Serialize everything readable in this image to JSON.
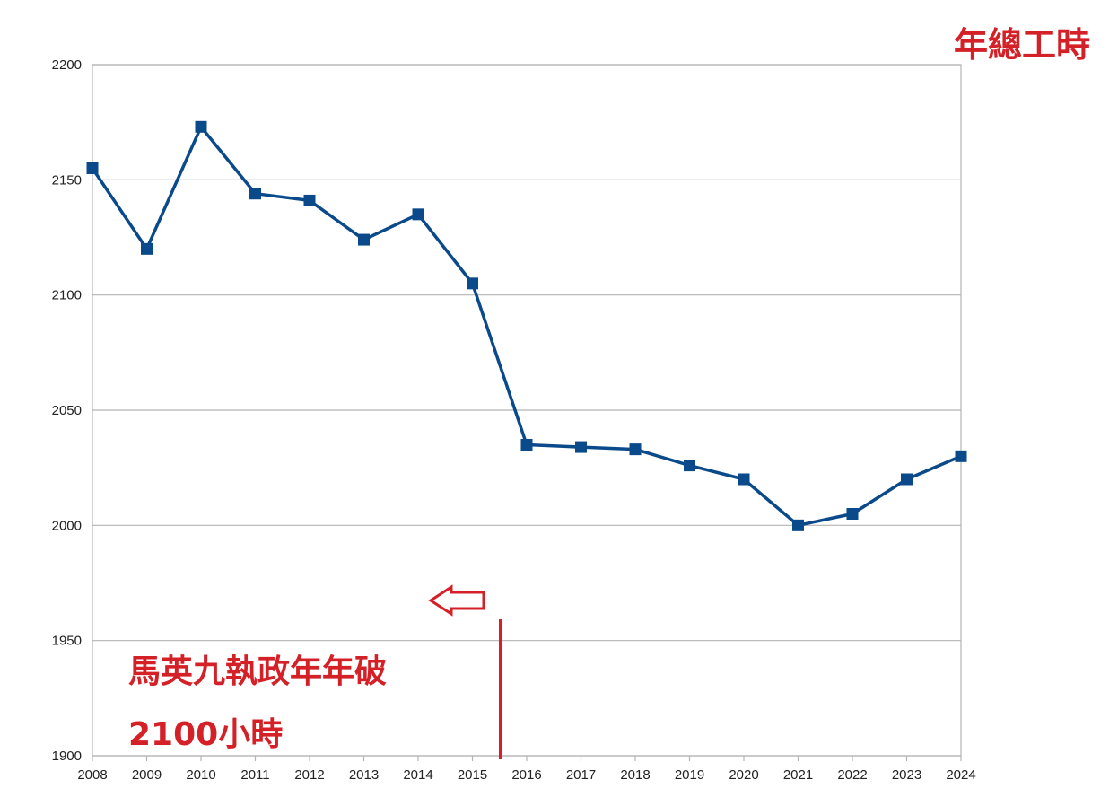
{
  "chart_data": {
    "type": "line",
    "title": "年總工時",
    "xlabel": "",
    "ylabel": "",
    "x": [
      "2008",
      "2009",
      "2010",
      "2011",
      "2012",
      "2013",
      "2014",
      "2015",
      "2016",
      "2017",
      "2018",
      "2019",
      "2020",
      "2021",
      "2022",
      "2023",
      "2024"
    ],
    "series": [
      {
        "name": "",
        "values": [
          2155,
          2120,
          2173,
          2144,
          2141,
          2124,
          2135,
          2105,
          2035,
          2034,
          2033,
          2026,
          2020,
          2000,
          2005,
          2020,
          2030
        ]
      }
    ],
    "ylim": [
      1900,
      2200
    ],
    "yticks": [
      "1900",
      "1950",
      "2000",
      "2050",
      "2100",
      "2150",
      "2200"
    ],
    "grid": true,
    "line_color": "#0b4a8a",
    "marker": "square",
    "annotations": {
      "line1": "馬英九執政年年破",
      "line2": "2100小時",
      "color": "#d42027"
    }
  }
}
